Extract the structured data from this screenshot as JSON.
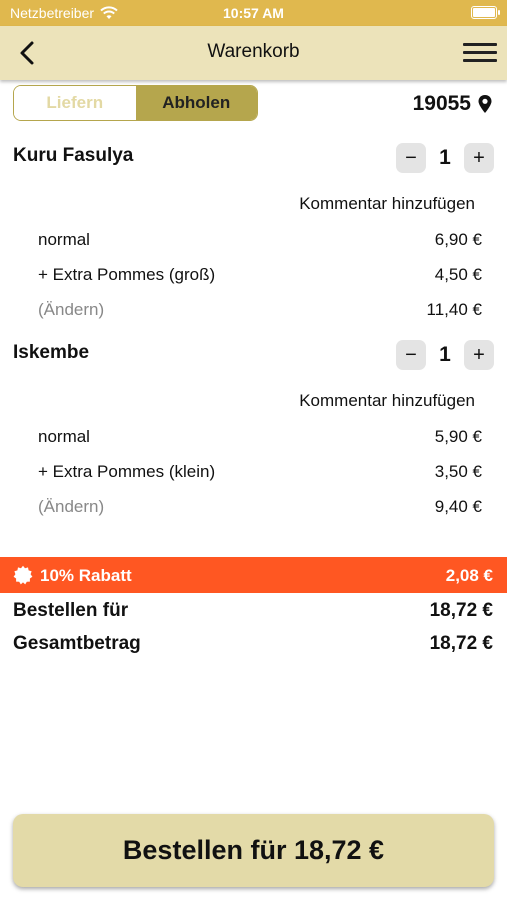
{
  "status_bar": {
    "carrier": "Netzbetreiber",
    "time": "10:57 AM"
  },
  "nav": {
    "title": "Warenkorb",
    "icons": {
      "back": "chevron-left-icon",
      "menu": "hamburger-menu-icon"
    }
  },
  "mode_toggle": {
    "options": [
      "Liefern",
      "Abholen"
    ],
    "selected": "Abholen"
  },
  "location": {
    "zip": "19055",
    "icon": "location-pin-icon"
  },
  "cart_items": [
    {
      "name": "Kuru Fasulya",
      "quantity": "1",
      "comment_label": "Kommentar hinzufügen",
      "lines": [
        {
          "label": "normal",
          "price": "6,90 €"
        },
        {
          "label": "+ Extra Pommes (groß)",
          "price": "4,50 €"
        },
        {
          "label": "(Ändern)",
          "price": "11,40 €"
        }
      ]
    },
    {
      "name": "Iskembe",
      "quantity": "1",
      "comment_label": "Kommentar hinzufügen",
      "lines": [
        {
          "label": "normal",
          "price": "5,90 €"
        },
        {
          "label": "+ Extra Pommes (klein)",
          "price": "3,50 €"
        },
        {
          "label": "(Ändern)",
          "price": "9,40 €"
        }
      ]
    }
  ],
  "stepper_symbols": {
    "minus": "−",
    "plus": "+"
  },
  "discount": {
    "label": "10% Rabatt",
    "value": "2,08 €",
    "color": "#ff5722",
    "icon": "badge-icon"
  },
  "totals": {
    "order_for_label": "Bestellen für",
    "order_for_value": "18,72 €",
    "grand_total_label": "Gesamtbetrag",
    "grand_total_value": "18,72 €"
  },
  "order_button": {
    "label": "Bestellen für 18,72 €"
  },
  "colors": {
    "status_bar": "#e0b84e",
    "nav_bar": "#ece3ba",
    "accent": "#b5a64d",
    "button": "#e3daa8"
  }
}
